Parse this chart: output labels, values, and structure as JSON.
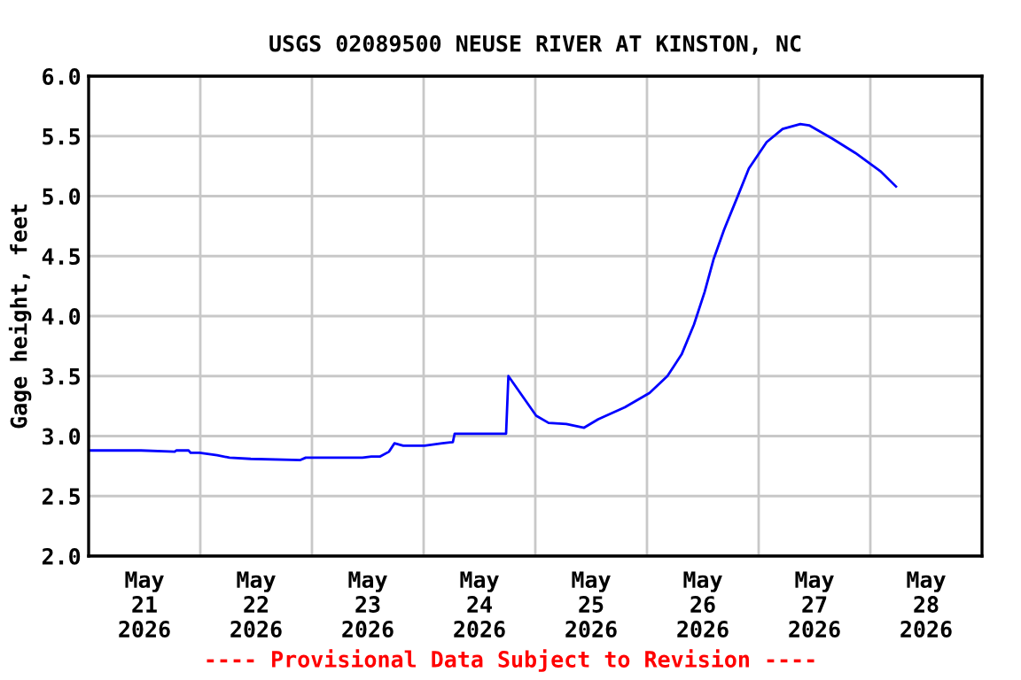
{
  "chart_data": {
    "type": "line",
    "title": "USGS 02089500 NEUSE RIVER AT KINSTON, NC",
    "ylabel": "Gage height, feet",
    "x": [
      "2026-05-20T12:00",
      "2026-05-20T23:15",
      "2026-05-21T06:30",
      "2026-05-21T06:50",
      "2026-05-21T09:30",
      "2026-05-21T09:55",
      "2026-05-21T11:50",
      "2026-05-21T15:37",
      "2026-05-21T18:17",
      "2026-05-21T22:51",
      "2026-05-22T09:31",
      "2026-05-22T10:40",
      "2026-05-22T22:51",
      "2026-05-23T00:46",
      "2026-05-23T02:40",
      "2026-05-23T04:34",
      "2026-05-23T05:43",
      "2026-05-23T07:37",
      "2026-05-23T12:11",
      "2026-05-23T16:00",
      "2026-05-23T18:17",
      "2026-05-23T18:40",
      "2026-05-24T05:20",
      "2026-05-24T05:43",
      "2026-05-24T06:13",
      "2026-05-24T12:11",
      "2026-05-24T14:51",
      "2026-05-24T18:40",
      "2026-05-24T22:29",
      "2026-05-25T01:31",
      "2026-05-25T07:14",
      "2026-05-25T12:34",
      "2026-05-25T16:23",
      "2026-05-25T19:26",
      "2026-05-25T22:06",
      "2026-05-26T00:23",
      "2026-05-26T02:17",
      "2026-05-26T04:34",
      "2026-05-26T07:37",
      "2026-05-26T09:54",
      "2026-05-26T13:43",
      "2026-05-26T17:09",
      "2026-05-26T20:57",
      "2026-05-26T22:51",
      "2026-05-27T03:49",
      "2026-05-27T08:46",
      "2026-05-27T14:06",
      "2026-05-27T17:31"
    ],
    "series": [
      {
        "color": "#0000ff",
        "values": [
          2.88,
          2.88,
          2.87,
          2.88,
          2.88,
          2.86,
          2.86,
          2.84,
          2.82,
          2.81,
          2.8,
          2.82,
          2.82,
          2.83,
          2.83,
          2.87,
          2.94,
          2.92,
          2.92,
          2.94,
          2.95,
          3.02,
          3.02,
          3.02,
          3.5,
          3.17,
          3.11,
          3.1,
          3.07,
          3.14,
          3.24,
          3.36,
          3.5,
          3.68,
          3.93,
          4.2,
          4.47,
          4.72,
          5.01,
          5.23,
          5.45,
          5.56,
          5.6,
          5.59,
          5.48,
          5.36,
          5.21,
          5.08
        ]
      }
    ],
    "xlim": [
      "2026-05-20T12:00",
      "2026-05-28T12:00"
    ],
    "xticks": [
      {
        "value": "2026-05-21",
        "label": "May\n21\n2026"
      },
      {
        "value": "2026-05-22",
        "label": "May\n22\n2026"
      },
      {
        "value": "2026-05-23",
        "label": "May\n23\n2026"
      },
      {
        "value": "2026-05-24",
        "label": "May\n24\n2026"
      },
      {
        "value": "2026-05-25",
        "label": "May\n25\n2026"
      },
      {
        "value": "2026-05-26",
        "label": "May\n26\n2026"
      },
      {
        "value": "2026-05-27",
        "label": "May\n27\n2026"
      },
      {
        "value": "2026-05-28",
        "label": "May\n28\n2026"
      }
    ],
    "ylim": [
      2.0,
      6.0
    ],
    "yticks": [
      {
        "value": 2.0,
        "label": "2.0"
      },
      {
        "value": 2.5,
        "label": "2.5"
      },
      {
        "value": 3.0,
        "label": "3.0"
      },
      {
        "value": 3.5,
        "label": "3.5"
      },
      {
        "value": 4.0,
        "label": "4.0"
      },
      {
        "value": 4.5,
        "label": "4.5"
      },
      {
        "value": 5.0,
        "label": "5.0"
      },
      {
        "value": 5.5,
        "label": "5.5"
      },
      {
        "value": 6.0,
        "label": "6.0"
      }
    ],
    "grid": true,
    "legend": false,
    "marker": "none",
    "line_style": "solid",
    "annotations": [
      "---- Provisional Data Subject to Revision ----"
    ]
  }
}
